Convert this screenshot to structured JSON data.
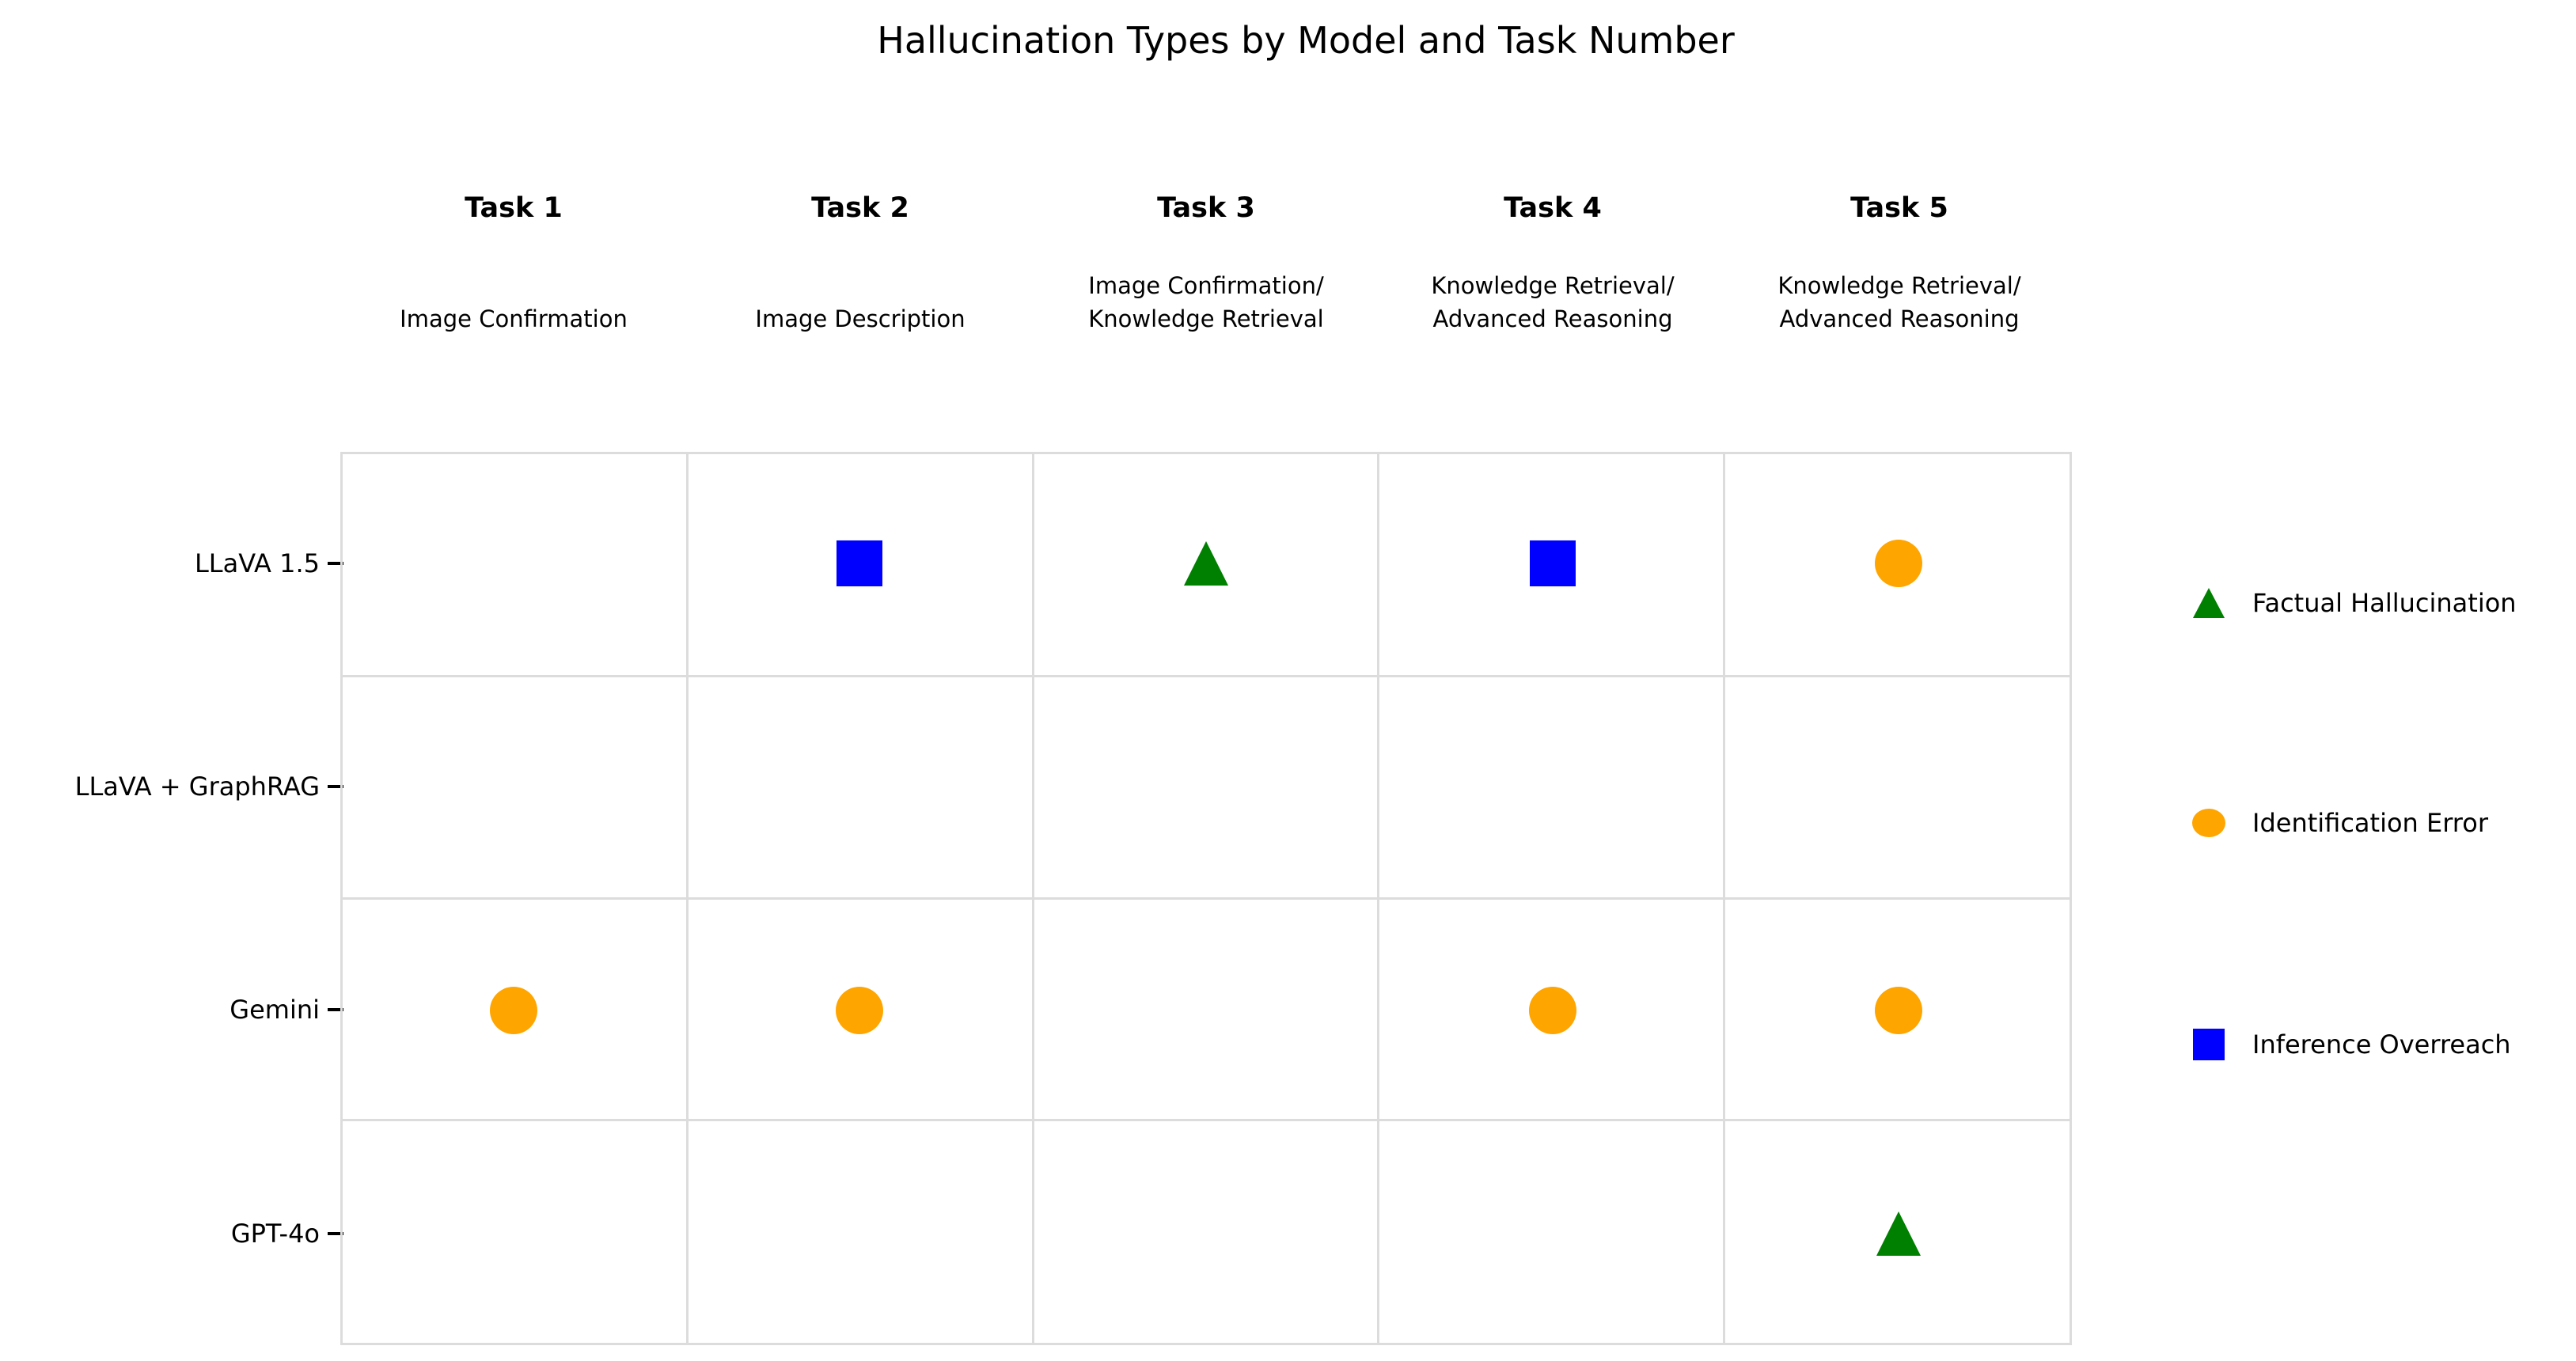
{
  "title": "Hallucination Types by Model and Task Number",
  "colors": {
    "factual_hallucination": "#008000",
    "identification_error": "#ffa500",
    "inference_overreach": "#0000ff",
    "gridline": "#dcdcdc"
  },
  "columns": [
    {
      "label": "Task 1",
      "subtitle": "Image Confirmation"
    },
    {
      "label": "Task 2",
      "subtitle": "Image Description"
    },
    {
      "label": "Task 3",
      "subtitle": "Image Confirmation/\nKnowledge Retrieval"
    },
    {
      "label": "Task 4",
      "subtitle": "Knowledge Retrieval/\nAdvanced Reasoning"
    },
    {
      "label": "Task 5",
      "subtitle": "Knowledge Retrieval/\nAdvanced Reasoning"
    }
  ],
  "rows": [
    {
      "label": "LLaVA 1.5"
    },
    {
      "label": "LLaVA + GraphRAG"
    },
    {
      "label": "Gemini"
    },
    {
      "label": "GPT-4o"
    }
  ],
  "legend": [
    {
      "marker": "triangle",
      "label": "Factual Hallucination",
      "color": "#008000"
    },
    {
      "marker": "circle",
      "label": "Identification Error",
      "color": "#ffa500"
    },
    {
      "marker": "square",
      "label": "Inference Overreach",
      "color": "#0000ff"
    }
  ],
  "chart_data": {
    "type": "scatter",
    "title": "Hallucination Types by Model and Task Number",
    "x_categories": [
      "Task 1",
      "Task 2",
      "Task 3",
      "Task 4",
      "Task 5"
    ],
    "x_category_descriptions": [
      "Image Confirmation",
      "Image Description",
      "Image Confirmation/Knowledge Retrieval",
      "Knowledge Retrieval/Advanced Reasoning",
      "Knowledge Retrieval/Advanced Reasoning"
    ],
    "y_categories": [
      "LLaVA 1.5",
      "LLaVA + GraphRAG",
      "Gemini",
      "GPT-4o"
    ],
    "grid": true,
    "legend_position": "right",
    "points": [
      {
        "row": 0,
        "col": 1,
        "model": "LLaVA 1.5",
        "task": "Task 2",
        "hallucination_type": "Inference Overreach",
        "marker": "square",
        "color": "#0000ff"
      },
      {
        "row": 0,
        "col": 2,
        "model": "LLaVA 1.5",
        "task": "Task 3",
        "hallucination_type": "Factual Hallucination",
        "marker": "triangle",
        "color": "#008000"
      },
      {
        "row": 0,
        "col": 3,
        "model": "LLaVA 1.5",
        "task": "Task 4",
        "hallucination_type": "Inference Overreach",
        "marker": "square",
        "color": "#0000ff"
      },
      {
        "row": 0,
        "col": 4,
        "model": "LLaVA 1.5",
        "task": "Task 5",
        "hallucination_type": "Identification Error",
        "marker": "circle",
        "color": "#ffa500"
      },
      {
        "row": 2,
        "col": 0,
        "model": "Gemini",
        "task": "Task 1",
        "hallucination_type": "Identification Error",
        "marker": "circle",
        "color": "#ffa500"
      },
      {
        "row": 2,
        "col": 1,
        "model": "Gemini",
        "task": "Task 2",
        "hallucination_type": "Identification Error",
        "marker": "circle",
        "color": "#ffa500"
      },
      {
        "row": 2,
        "col": 3,
        "model": "Gemini",
        "task": "Task 4",
        "hallucination_type": "Identification Error",
        "marker": "circle",
        "color": "#ffa500"
      },
      {
        "row": 2,
        "col": 4,
        "model": "Gemini",
        "task": "Task 5",
        "hallucination_type": "Identification Error",
        "marker": "circle",
        "color": "#ffa500"
      },
      {
        "row": 3,
        "col": 4,
        "model": "GPT-4o",
        "task": "Task 5",
        "hallucination_type": "Factual Hallucination",
        "marker": "triangle",
        "color": "#008000"
      }
    ]
  }
}
